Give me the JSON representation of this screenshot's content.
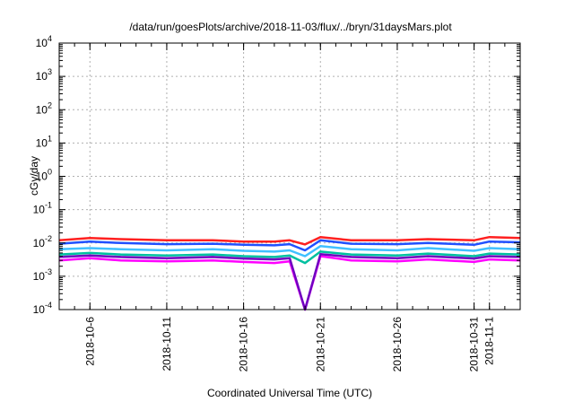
{
  "chart_data": {
    "type": "line",
    "title": "/data/run/goesPlots/archive/2018-11-03/flux/../bryn/31daysMars.plot",
    "xlabel": "Coordinated Universal Time (UTC)",
    "ylabel": "cGy/day",
    "yscale": "log",
    "ylim": [
      0.0001,
      10000
    ],
    "y_ticks": [
      {
        "value": 0.0001,
        "base": "10",
        "exp": "-4"
      },
      {
        "value": 0.001,
        "base": "10",
        "exp": "-3"
      },
      {
        "value": 0.01,
        "base": "10",
        "exp": "-2"
      },
      {
        "value": 0.1,
        "base": "10",
        "exp": "-1"
      },
      {
        "value": 1,
        "base": "10",
        "exp": "0"
      },
      {
        "value": 10,
        "base": "10",
        "exp": "1"
      },
      {
        "value": 100,
        "base": "10",
        "exp": "2"
      },
      {
        "value": 1000,
        "base": "10",
        "exp": "3"
      },
      {
        "value": 10000,
        "base": "10",
        "exp": "4"
      }
    ],
    "xlim": [
      "2018-10-04",
      "2018-11-03"
    ],
    "x_ticks": [
      "2018-10-6",
      "2018-10-11",
      "2018-10-16",
      "2018-10-21",
      "2018-10-26",
      "2018-10-31",
      "2018-11-1"
    ],
    "x_tick_dates": [
      "2018-10-06",
      "2018-10-11",
      "2018-10-16",
      "2018-10-21",
      "2018-10-26",
      "2018-10-31",
      "2018-11-01"
    ],
    "grid": true,
    "series": [
      {
        "color": "#ff00ff",
        "x": [
          "2018-10-04",
          "2018-10-06",
          "2018-10-08",
          "2018-10-11",
          "2018-10-14",
          "2018-10-16",
          "2018-10-18",
          "2018-10-19",
          "2018-10-20",
          "2018-10-21",
          "2018-10-23",
          "2018-10-26",
          "2018-10-28",
          "2018-10-31",
          "2018-11-01",
          "2018-11-03"
        ],
        "y": [
          0.003,
          0.0035,
          0.003,
          0.0028,
          0.003,
          0.0027,
          0.0025,
          0.0028,
          0.0001,
          0.004,
          0.003,
          0.0028,
          0.0032,
          0.0027,
          0.0032,
          0.003
        ]
      },
      {
        "color": "#00c0a0",
        "x": [
          "2018-10-04",
          "2018-10-06",
          "2018-10-08",
          "2018-10-11",
          "2018-10-14",
          "2018-10-16",
          "2018-10-18",
          "2018-10-19",
          "2018-10-20",
          "2018-10-21",
          "2018-10-23",
          "2018-10-26",
          "2018-10-28",
          "2018-10-31",
          "2018-11-01",
          "2018-11-03"
        ],
        "y": [
          0.0045,
          0.005,
          0.0045,
          0.0042,
          0.0045,
          0.004,
          0.0038,
          0.0042,
          0.0025,
          0.0055,
          0.0045,
          0.0042,
          0.0048,
          0.004,
          0.0048,
          0.0045
        ]
      },
      {
        "color": "#7000c0",
        "x": [
          "2018-10-04",
          "2018-10-06",
          "2018-10-08",
          "2018-10-11",
          "2018-10-14",
          "2018-10-16",
          "2018-10-18",
          "2018-10-19",
          "2018-10-20",
          "2018-10-21",
          "2018-10-23",
          "2018-10-26",
          "2018-10-28",
          "2018-10-31",
          "2018-11-01",
          "2018-11-03"
        ],
        "y": [
          0.0038,
          0.0042,
          0.0038,
          0.0035,
          0.0038,
          0.0034,
          0.0032,
          0.0035,
          0.0001,
          0.0046,
          0.0038,
          0.0035,
          0.004,
          0.0034,
          0.004,
          0.0038
        ]
      },
      {
        "color": "#40c0ff",
        "x": [
          "2018-10-04",
          "2018-10-06",
          "2018-10-08",
          "2018-10-11",
          "2018-10-14",
          "2018-10-16",
          "2018-10-18",
          "2018-10-19",
          "2018-10-20",
          "2018-10-21",
          "2018-10-23",
          "2018-10-26",
          "2018-10-28",
          "2018-10-31",
          "2018-11-01",
          "2018-11-03"
        ],
        "y": [
          0.0065,
          0.007,
          0.0065,
          0.006,
          0.0065,
          0.0058,
          0.0055,
          0.006,
          0.004,
          0.008,
          0.0065,
          0.006,
          0.007,
          0.0058,
          0.007,
          0.0065
        ]
      },
      {
        "color": "#ff2020",
        "x": [
          "2018-10-04",
          "2018-10-06",
          "2018-10-08",
          "2018-10-11",
          "2018-10-14",
          "2018-10-16",
          "2018-10-18",
          "2018-10-19",
          "2018-10-20",
          "2018-10-21",
          "2018-10-23",
          "2018-10-26",
          "2018-10-28",
          "2018-10-31",
          "2018-11-01",
          "2018-11-03"
        ],
        "y": [
          0.012,
          0.014,
          0.013,
          0.012,
          0.012,
          0.011,
          0.011,
          0.012,
          0.009,
          0.015,
          0.012,
          0.012,
          0.013,
          0.012,
          0.015,
          0.014
        ]
      },
      {
        "color": "#2050ff",
        "x": [
          "2018-10-04",
          "2018-10-06",
          "2018-10-08",
          "2018-10-11",
          "2018-10-14",
          "2018-10-16",
          "2018-10-18",
          "2018-10-19",
          "2018-10-20",
          "2018-10-21",
          "2018-10-23",
          "2018-10-26",
          "2018-10-28",
          "2018-10-31",
          "2018-11-01",
          "2018-11-03"
        ],
        "y": [
          0.0095,
          0.011,
          0.01,
          0.0092,
          0.0095,
          0.0088,
          0.0085,
          0.0092,
          0.006,
          0.012,
          0.0095,
          0.0092,
          0.01,
          0.0088,
          0.011,
          0.0105
        ]
      }
    ]
  }
}
